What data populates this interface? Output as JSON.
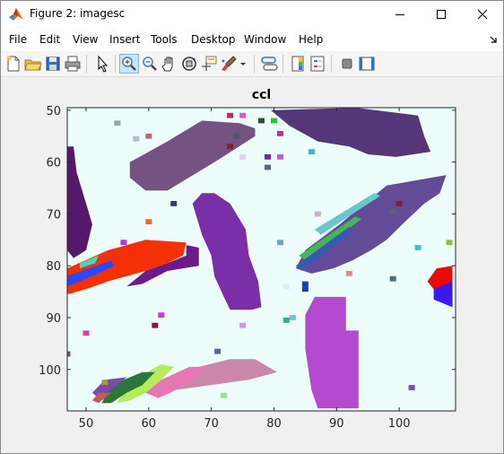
{
  "window": {
    "title": "Figure 2: imagesc"
  },
  "menus": [
    "File",
    "Edit",
    "View",
    "Insert",
    "Tools",
    "Desktop",
    "Window",
    "Help"
  ],
  "toolbar": {
    "buttons": [
      "new-figure-icon",
      "open-file-icon",
      "save-icon",
      "print-icon",
      "pointer-icon",
      "zoom-in-icon",
      "zoom-out-icon",
      "pan-hand-icon",
      "rotate-3d-icon",
      "data-cursor-icon",
      "brush-icon",
      "brush-dropdown-icon",
      "link-plot-icon",
      "insert-colorbar-icon",
      "insert-legend-icon",
      "hide-plot-tools-icon",
      "show-plot-tools-icon"
    ],
    "active": "zoom-in-icon"
  },
  "chart_data": {
    "type": "heatmap",
    "title": "ccl",
    "xlim": [
      47,
      109
    ],
    "ylim": [
      49.5,
      108
    ],
    "y_reversed": true,
    "xticks": [
      50,
      60,
      70,
      80,
      90,
      100
    ],
    "yticks": [
      50,
      60,
      70,
      80,
      90,
      100
    ],
    "background": "#ecfdfb",
    "regions": [
      {
        "color": "#745281",
        "poly": [
          [
            74.5,
            52.5
          ],
          [
            77,
            53.5
          ],
          [
            77,
            55
          ],
          [
            70.5,
            60
          ],
          [
            63,
            65.5
          ],
          [
            59.5,
            65.5
          ],
          [
            57,
            63
          ],
          [
            57,
            60
          ],
          [
            63,
            56
          ],
          [
            68.5,
            52
          ]
        ]
      },
      {
        "color": "#543779",
        "poly": [
          [
            79.5,
            50
          ],
          [
            93,
            49.5
          ],
          [
            103,
            51
          ],
          [
            104,
            55
          ],
          [
            105,
            58
          ],
          [
            99.5,
            59
          ],
          [
            95,
            58.5
          ],
          [
            92,
            57
          ],
          [
            87,
            56
          ],
          [
            82.5,
            53
          ]
        ]
      },
      {
        "color": "#55186a",
        "poly": [
          [
            48,
            57
          ],
          [
            48.5,
            62
          ],
          [
            50,
            68
          ],
          [
            51,
            72
          ],
          [
            50,
            77
          ],
          [
            48,
            78.5
          ],
          [
            47,
            77
          ],
          [
            47,
            57
          ]
        ]
      },
      {
        "color": "#7a2fa9",
        "poly": [
          [
            70.5,
            66
          ],
          [
            73,
            68
          ],
          [
            75.5,
            73
          ],
          [
            76,
            78
          ],
          [
            77.5,
            83
          ],
          [
            78,
            88
          ],
          [
            76.5,
            88.5
          ],
          [
            73,
            88.5
          ],
          [
            72,
            86
          ],
          [
            70.5,
            82
          ],
          [
            70,
            78
          ],
          [
            68.5,
            74
          ],
          [
            67,
            68
          ],
          [
            68.5,
            66
          ]
        ]
      },
      {
        "color": "#634b98",
        "poly": [
          [
            98,
            64.5
          ],
          [
            107.5,
            62.5
          ],
          [
            106.5,
            66
          ],
          [
            104,
            68
          ],
          [
            100.5,
            72
          ],
          [
            98,
            75
          ],
          [
            95.5,
            77
          ],
          [
            92.5,
            79
          ],
          [
            89.5,
            80.5
          ],
          [
            86,
            81.5
          ],
          [
            83.5,
            80.5
          ],
          [
            85,
            77
          ],
          [
            90.5,
            72
          ],
          [
            95,
            67.5
          ]
        ]
      },
      {
        "color": "#f53006",
        "poly": [
          [
            59.5,
            75
          ],
          [
            66,
            75.5
          ],
          [
            65.5,
            78
          ],
          [
            63,
            79.5
          ],
          [
            59.5,
            81
          ],
          [
            56.5,
            82
          ],
          [
            53.5,
            83
          ],
          [
            50,
            84.5
          ],
          [
            47,
            85.5
          ],
          [
            47,
            80.5
          ],
          [
            53.5,
            77
          ]
        ]
      },
      {
        "color": "#6c1b8b",
        "poly": [
          [
            66,
            76
          ],
          [
            68,
            76.5
          ],
          [
            68,
            80
          ],
          [
            63,
            81
          ],
          [
            59,
            83.5
          ],
          [
            56.5,
            84
          ],
          [
            59.5,
            81
          ],
          [
            63,
            79.5
          ],
          [
            66,
            78
          ]
        ]
      },
      {
        "color": "#b54ad0",
        "poly": [
          [
            86.5,
            86
          ],
          [
            91.5,
            86
          ],
          [
            91.5,
            92.5
          ],
          [
            93.5,
            92.5
          ],
          [
            93.5,
            107.5
          ],
          [
            87,
            107.5
          ],
          [
            86,
            104
          ],
          [
            85,
            96
          ],
          [
            85,
            89.5
          ]
        ]
      },
      {
        "color": "#cb87a9",
        "poly": [
          [
            77,
            98
          ],
          [
            80.5,
            100.5
          ],
          [
            76,
            102
          ],
          [
            70,
            103
          ],
          [
            64,
            104
          ],
          [
            62,
            104.5
          ],
          [
            63.5,
            102
          ],
          [
            68,
            99.5
          ],
          [
            73,
            98
          ]
        ]
      },
      {
        "color": "#e777b4",
        "poly": [
          [
            66.5,
            99.5
          ],
          [
            69.5,
            99.5
          ],
          [
            67,
            102
          ],
          [
            63.5,
            104.5
          ],
          [
            61.5,
            105.5
          ],
          [
            59.5,
            104.5
          ],
          [
            62,
            102
          ]
        ]
      },
      {
        "color": "#b4ec5b",
        "poly": [
          [
            62,
            99
          ],
          [
            64,
            99.5
          ],
          [
            62,
            102
          ],
          [
            59.5,
            104.5
          ],
          [
            57,
            106
          ],
          [
            55,
            106.5
          ],
          [
            56.5,
            103
          ],
          [
            59,
            101
          ]
        ]
      },
      {
        "color": "#2a7738",
        "poly": [
          [
            59,
            100.5
          ],
          [
            61,
            100.5
          ],
          [
            59,
            103
          ],
          [
            56.5,
            104.5
          ],
          [
            54,
            106.5
          ],
          [
            52.5,
            106.5
          ],
          [
            54,
            103
          ]
        ]
      },
      {
        "color": "#7a4bab",
        "poly": [
          [
            53,
            102
          ],
          [
            56.5,
            101.5
          ],
          [
            54,
            104
          ],
          [
            52,
            105.5
          ],
          [
            51,
            104.5
          ]
        ]
      },
      {
        "color": "#c05b5e",
        "poly": [
          [
            52,
            104.5
          ],
          [
            54,
            104.5
          ],
          [
            52,
            106.5
          ],
          [
            51,
            106
          ]
        ]
      },
      {
        "color": "#2a47f5",
        "poly": [
          [
            47,
            82
          ],
          [
            54,
            79
          ],
          [
            54.5,
            80
          ],
          [
            51,
            82
          ],
          [
            47,
            84
          ]
        ]
      },
      {
        "color": "#4bd3c4",
        "poly": [
          [
            49,
            79.5
          ],
          [
            52,
            78
          ],
          [
            51.5,
            79.5
          ],
          [
            49,
            80.5
          ]
        ]
      },
      {
        "color": "#3c18f0",
        "poly": [
          [
            105.5,
            83
          ],
          [
            108.5,
            82
          ],
          [
            108.5,
            88
          ],
          [
            105.5,
            86.5
          ]
        ]
      },
      {
        "color": "#eb0a0a",
        "poly": [
          [
            106,
            80.5
          ],
          [
            108.5,
            80
          ],
          [
            108.5,
            83
          ],
          [
            105.5,
            84.5
          ],
          [
            104.5,
            83
          ]
        ]
      },
      {
        "color": "#69c6cb",
        "poly": [
          [
            86.5,
            73
          ],
          [
            96,
            66
          ],
          [
            97,
            66.5
          ],
          [
            87.5,
            74
          ]
        ]
      },
      {
        "color": "#45b55b",
        "poly": [
          [
            84,
            78
          ],
          [
            93,
            70.5
          ],
          [
            94,
            71
          ],
          [
            85,
            79
          ]
        ]
      },
      {
        "color": "#3b58b0",
        "poly": [
          [
            83.5,
            80
          ],
          [
            92,
            72.5
          ],
          [
            92.5,
            73.5
          ],
          [
            84.5,
            81
          ]
        ]
      }
    ],
    "pixels": [
      {
        "x": 55,
        "y": 52.5,
        "color": "#94a6a6"
      },
      {
        "x": 58,
        "y": 55.5,
        "color": "#b4b4e3"
      },
      {
        "x": 60,
        "y": 55,
        "color": "#b46d74"
      },
      {
        "x": 73,
        "y": 51,
        "color": "#b92f58"
      },
      {
        "x": 75,
        "y": 51,
        "color": "#ea4bdb"
      },
      {
        "x": 78,
        "y": 52,
        "color": "#2e4d3b"
      },
      {
        "x": 80,
        "y": 52,
        "color": "#2ec13a"
      },
      {
        "x": 81,
        "y": 54.5,
        "color": "#d1289e"
      },
      {
        "x": 74,
        "y": 55,
        "color": "#54546f"
      },
      {
        "x": 73,
        "y": 57,
        "color": "#8e1b2b"
      },
      {
        "x": 75,
        "y": 59,
        "color": "#e5d0f5"
      },
      {
        "x": 79,
        "y": 59,
        "color": "#7e22b7"
      },
      {
        "x": 81,
        "y": 59,
        "color": "#b85ee3"
      },
      {
        "x": 79,
        "y": 61,
        "color": "#5c668a"
      },
      {
        "x": 86,
        "y": 58,
        "color": "#44b3c6"
      },
      {
        "x": 64,
        "y": 68,
        "color": "#323c6e"
      },
      {
        "x": 100,
        "y": 68,
        "color": "#8b1a35"
      },
      {
        "x": 99,
        "y": 69.5,
        "color": "#5e5e76"
      },
      {
        "x": 87,
        "y": 70,
        "color": "#c7b0cd"
      },
      {
        "x": 60,
        "y": 71.5,
        "color": "#f3652f"
      },
      {
        "x": 56,
        "y": 75.5,
        "color": "#ad3ad2"
      },
      {
        "x": 81,
        "y": 75.5,
        "color": "#6aa6c0"
      },
      {
        "x": 103,
        "y": 76.5,
        "color": "#2bcbcb"
      },
      {
        "x": 108,
        "y": 75.5,
        "color": "#8fc13c"
      },
      {
        "x": 92,
        "y": 81.5,
        "color": "#dd8a93"
      },
      {
        "x": 99,
        "y": 82.5,
        "color": "#4c6f7c"
      },
      {
        "x": 85,
        "y": 83.5,
        "color": "#113ec8"
      },
      {
        "x": 85,
        "y": 84.5,
        "color": "#113ec8"
      },
      {
        "x": 82,
        "y": 84,
        "color": "#d4f3f4"
      },
      {
        "x": 83,
        "y": 90,
        "color": "#6bc3e0"
      },
      {
        "x": 62,
        "y": 89.5,
        "color": "#d33acd"
      },
      {
        "x": 61,
        "y": 91.5,
        "color": "#8b1534"
      },
      {
        "x": 50,
        "y": 93,
        "color": "#d6449b"
      },
      {
        "x": 75,
        "y": 91.5,
        "color": "#cb9ae0"
      },
      {
        "x": 82,
        "y": 90.5,
        "color": "#3aa988"
      },
      {
        "x": 71,
        "y": 96.5,
        "color": "#5a62a8"
      },
      {
        "x": 47,
        "y": 97,
        "color": "#6c4f91"
      },
      {
        "x": 102,
        "y": 103.5,
        "color": "#7f48c6"
      },
      {
        "x": 72,
        "y": 105,
        "color": "#9bdca0"
      },
      {
        "x": 53,
        "y": 102.5,
        "color": "#9b9b3f"
      },
      {
        "x": 86,
        "y": 95,
        "color": "#b54ad0"
      }
    ]
  }
}
